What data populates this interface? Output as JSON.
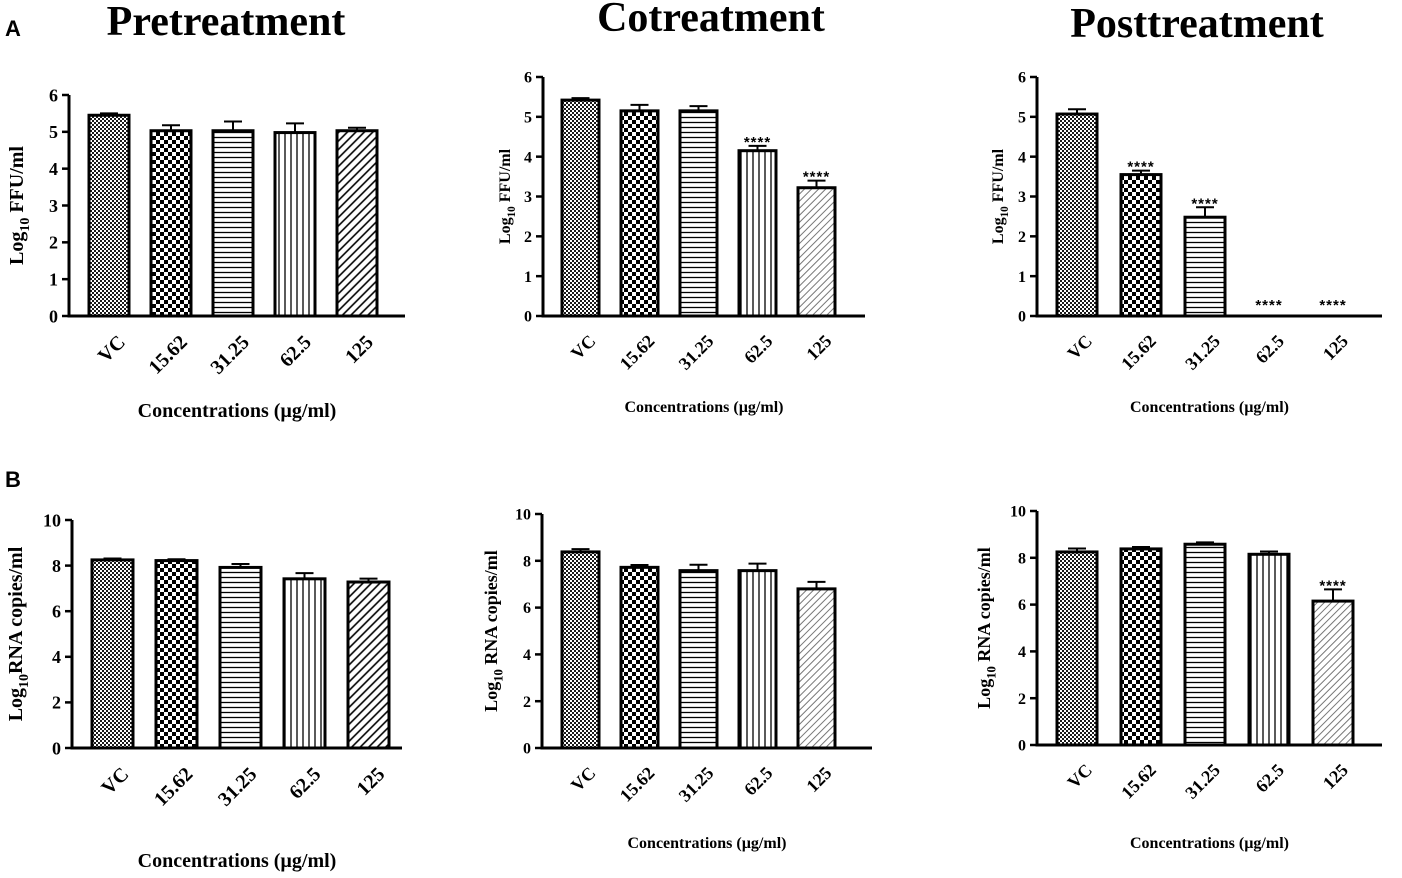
{
  "figure": {
    "panel_labels": {
      "a": "A",
      "b": "B"
    },
    "column_titles": [
      "Pretreatment",
      "Cotreatment",
      "Posttreatment"
    ],
    "colors": {
      "ink": "#000000",
      "background": "#ffffff"
    }
  },
  "chart_data": [
    {
      "id": "A-pre",
      "type": "bar",
      "panel": "A",
      "title": "Pretreatment",
      "categories": [
        "VC",
        "15.62",
        "31.25",
        "62.5",
        "125"
      ],
      "values": [
        5.45,
        5.03,
        5.03,
        4.98,
        5.03
      ],
      "errors": [
        0.05,
        0.15,
        0.25,
        0.25,
        0.08
      ],
      "significance": [
        "",
        "",
        "",
        "",
        ""
      ],
      "patterns": [
        "fine-check",
        "checker",
        "horizontal",
        "vertical",
        "diag"
      ],
      "ylabel_main": "Log",
      "ylabel_sub": "10",
      "ylabel_rest": " FFU/ml",
      "xlabel": "Concentrations (µg/ml)",
      "ylim": [
        0,
        6
      ],
      "yticks": [
        0,
        1,
        2,
        3,
        4,
        5,
        6
      ]
    },
    {
      "id": "A-co",
      "type": "bar",
      "panel": "A",
      "title": "Cotreatment",
      "categories": [
        "VC",
        "15.62",
        "31.25",
        "62.5",
        "125"
      ],
      "values": [
        5.42,
        5.15,
        5.15,
        4.15,
        3.22
      ],
      "errors": [
        0.05,
        0.15,
        0.12,
        0.12,
        0.18
      ],
      "significance": [
        "",
        "",
        "",
        "****",
        "****"
      ],
      "patterns": [
        "fine-check",
        "checker",
        "horizontal",
        "vertical",
        "diag-light"
      ],
      "ylabel_main": "Log",
      "ylabel_sub": "10",
      "ylabel_rest": " FFU/ml",
      "xlabel": "Concentrations (µg/ml)",
      "ylim": [
        0,
        6
      ],
      "yticks": [
        0,
        1,
        2,
        3,
        4,
        5,
        6
      ]
    },
    {
      "id": "A-post",
      "type": "bar",
      "panel": "A",
      "title": "Posttreatment",
      "categories": [
        "VC",
        "15.62",
        "31.25",
        "62.5",
        "125"
      ],
      "values": [
        5.07,
        3.55,
        2.48,
        0,
        0
      ],
      "errors": [
        0.12,
        0.1,
        0.25,
        0,
        0
      ],
      "significance": [
        "",
        "****",
        "****",
        "****",
        "****"
      ],
      "patterns": [
        "fine-check",
        "checker",
        "horizontal",
        "vertical",
        "diag-light"
      ],
      "ylabel_main": "Log",
      "ylabel_sub": "10",
      "ylabel_rest": " FFU/ml",
      "xlabel": "Concentrations (µg/ml)",
      "ylim": [
        0,
        6
      ],
      "yticks": [
        0,
        1,
        2,
        3,
        4,
        5,
        6
      ]
    },
    {
      "id": "B-pre",
      "type": "bar",
      "panel": "B",
      "title": "Pretreatment",
      "categories": [
        "VC",
        "15.62",
        "31.25",
        "62.5",
        "125"
      ],
      "values": [
        8.25,
        8.22,
        7.92,
        7.42,
        7.28
      ],
      "errors": [
        0.06,
        0.06,
        0.15,
        0.25,
        0.15
      ],
      "significance": [
        "",
        "",
        "",
        "",
        ""
      ],
      "patterns": [
        "fine-check",
        "checker",
        "horizontal",
        "vertical",
        "diag"
      ],
      "ylabel_main": "Log",
      "ylabel_sub": "10",
      "ylabel_rest": "RNA copies/ml",
      "xlabel": "Concentrations (µg/ml)",
      "ylim": [
        0,
        10
      ],
      "yticks": [
        0,
        2,
        4,
        6,
        8,
        10
      ]
    },
    {
      "id": "B-co",
      "type": "bar",
      "panel": "B",
      "title": "Cotreatment",
      "categories": [
        "VC",
        "15.62",
        "31.25",
        "62.5",
        "125"
      ],
      "values": [
        8.38,
        7.72,
        7.58,
        7.58,
        6.8
      ],
      "errors": [
        0.12,
        0.1,
        0.25,
        0.3,
        0.3
      ],
      "significance": [
        "",
        "",
        "",
        "",
        ""
      ],
      "patterns": [
        "fine-check",
        "checker",
        "horizontal",
        "vertical",
        "diag-light"
      ],
      "ylabel_main": "Log",
      "ylabel_sub": "10",
      "ylabel_rest": " RNA copies/ml",
      "xlabel": "Concentrations (µg/ml)",
      "ylim": [
        0,
        10
      ],
      "yticks": [
        0,
        2,
        4,
        6,
        8,
        10
      ]
    },
    {
      "id": "B-post",
      "type": "bar",
      "panel": "B",
      "title": "Posttreatment",
      "categories": [
        "VC",
        "15.62",
        "31.25",
        "62.5",
        "125"
      ],
      "values": [
        8.25,
        8.38,
        8.58,
        8.15,
        6.15
      ],
      "errors": [
        0.15,
        0.08,
        0.08,
        0.12,
        0.5
      ],
      "significance": [
        "",
        "",
        "",
        "",
        "****"
      ],
      "patterns": [
        "fine-check",
        "checker",
        "horizontal",
        "vertical",
        "diag-light"
      ],
      "ylabel_main": "Log",
      "ylabel_sub": "10",
      "ylabel_rest": " RNA copies/ml",
      "xlabel": "Concentrations (µg/ml)",
      "ylim": [
        0,
        10
      ],
      "yticks": [
        0,
        2,
        4,
        6,
        8,
        10
      ]
    }
  ]
}
